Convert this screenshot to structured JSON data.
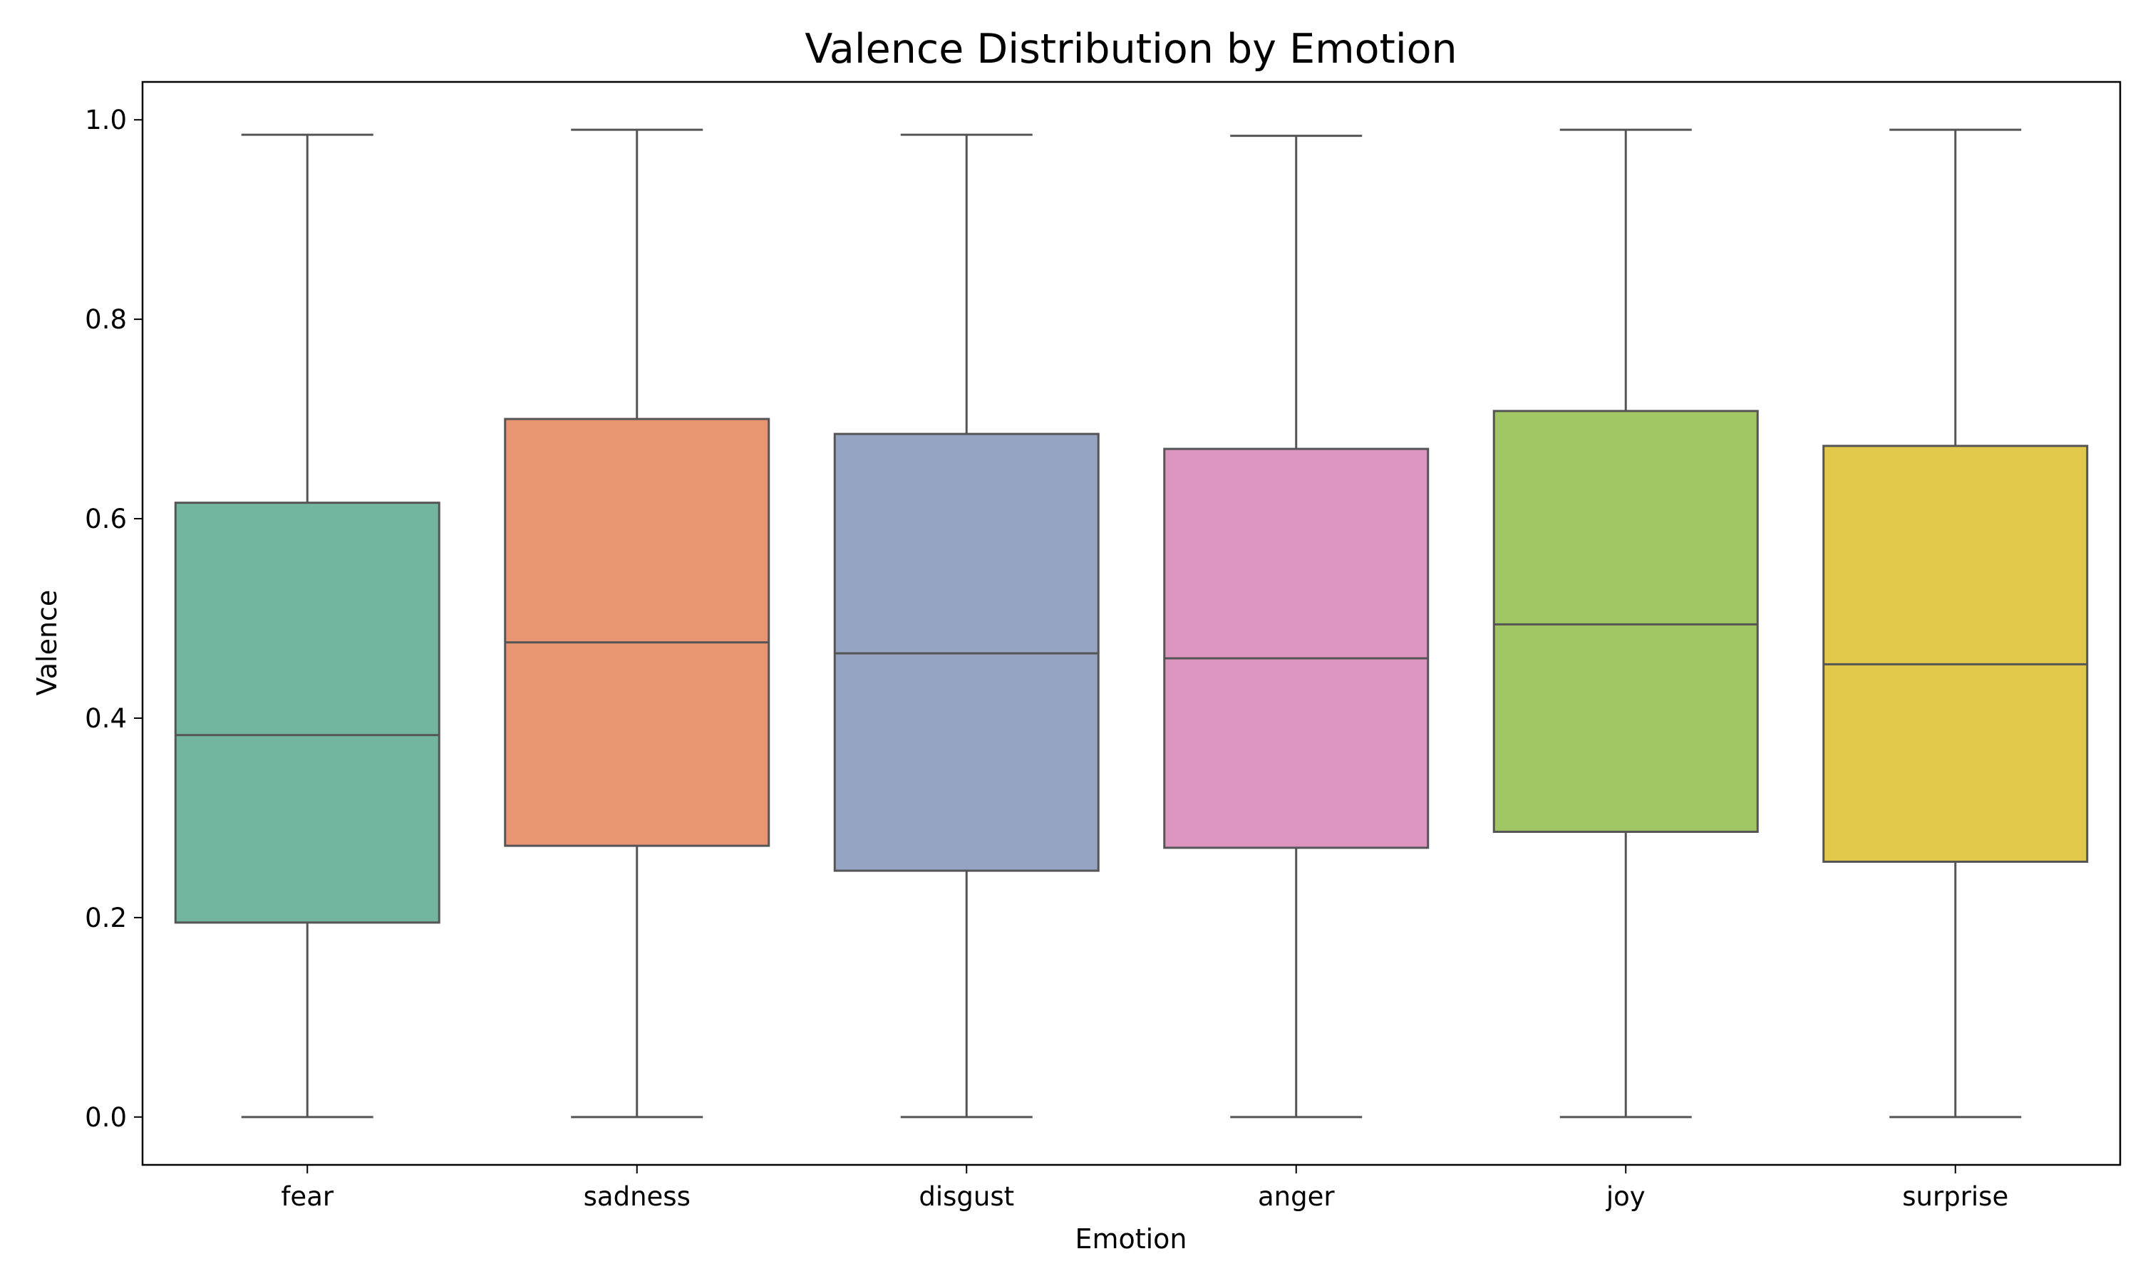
{
  "chart_data": {
    "type": "box",
    "title": "Valence Distribution by Emotion",
    "xlabel": "Emotion",
    "ylabel": "Valence",
    "ylim": [
      -0.048,
      1.038
    ],
    "yticks": [
      "0.0",
      "0.2",
      "0.4",
      "0.6",
      "0.8",
      "1.0"
    ],
    "ytick_values": [
      0.0,
      0.2,
      0.4,
      0.6,
      0.8,
      1.0
    ],
    "grid": false,
    "legend": "none",
    "categories": [
      "fear",
      "sadness",
      "disgust",
      "anger",
      "joy",
      "surprise"
    ],
    "boxes": [
      {
        "category": "fear",
        "whisker_low": 0.0,
        "q1": 0.195,
        "median": 0.383,
        "q3": 0.616,
        "whisker_high": 0.985,
        "color": "#73b59f"
      },
      {
        "category": "sadness",
        "whisker_low": 0.0,
        "q1": 0.272,
        "median": 0.476,
        "q3": 0.7,
        "whisker_high": 0.99,
        "color": "#e89573"
      },
      {
        "category": "disgust",
        "whisker_low": 0.0,
        "q1": 0.247,
        "median": 0.465,
        "q3": 0.685,
        "whisker_high": 0.985,
        "color": "#95a4c3"
      },
      {
        "category": "anger",
        "whisker_low": 0.0,
        "q1": 0.27,
        "median": 0.46,
        "q3": 0.67,
        "whisker_high": 0.984,
        "color": "#db95bf"
      },
      {
        "category": "joy",
        "whisker_low": 0.0,
        "q1": 0.286,
        "median": 0.494,
        "q3": 0.708,
        "whisker_high": 0.99,
        "color": "#a1c765"
      },
      {
        "category": "surprise",
        "whisker_low": 0.0,
        "q1": 0.256,
        "median": 0.454,
        "q3": 0.673,
        "whisker_high": 0.99,
        "color": "#e2c94b"
      }
    ],
    "line_color": "#555555"
  }
}
